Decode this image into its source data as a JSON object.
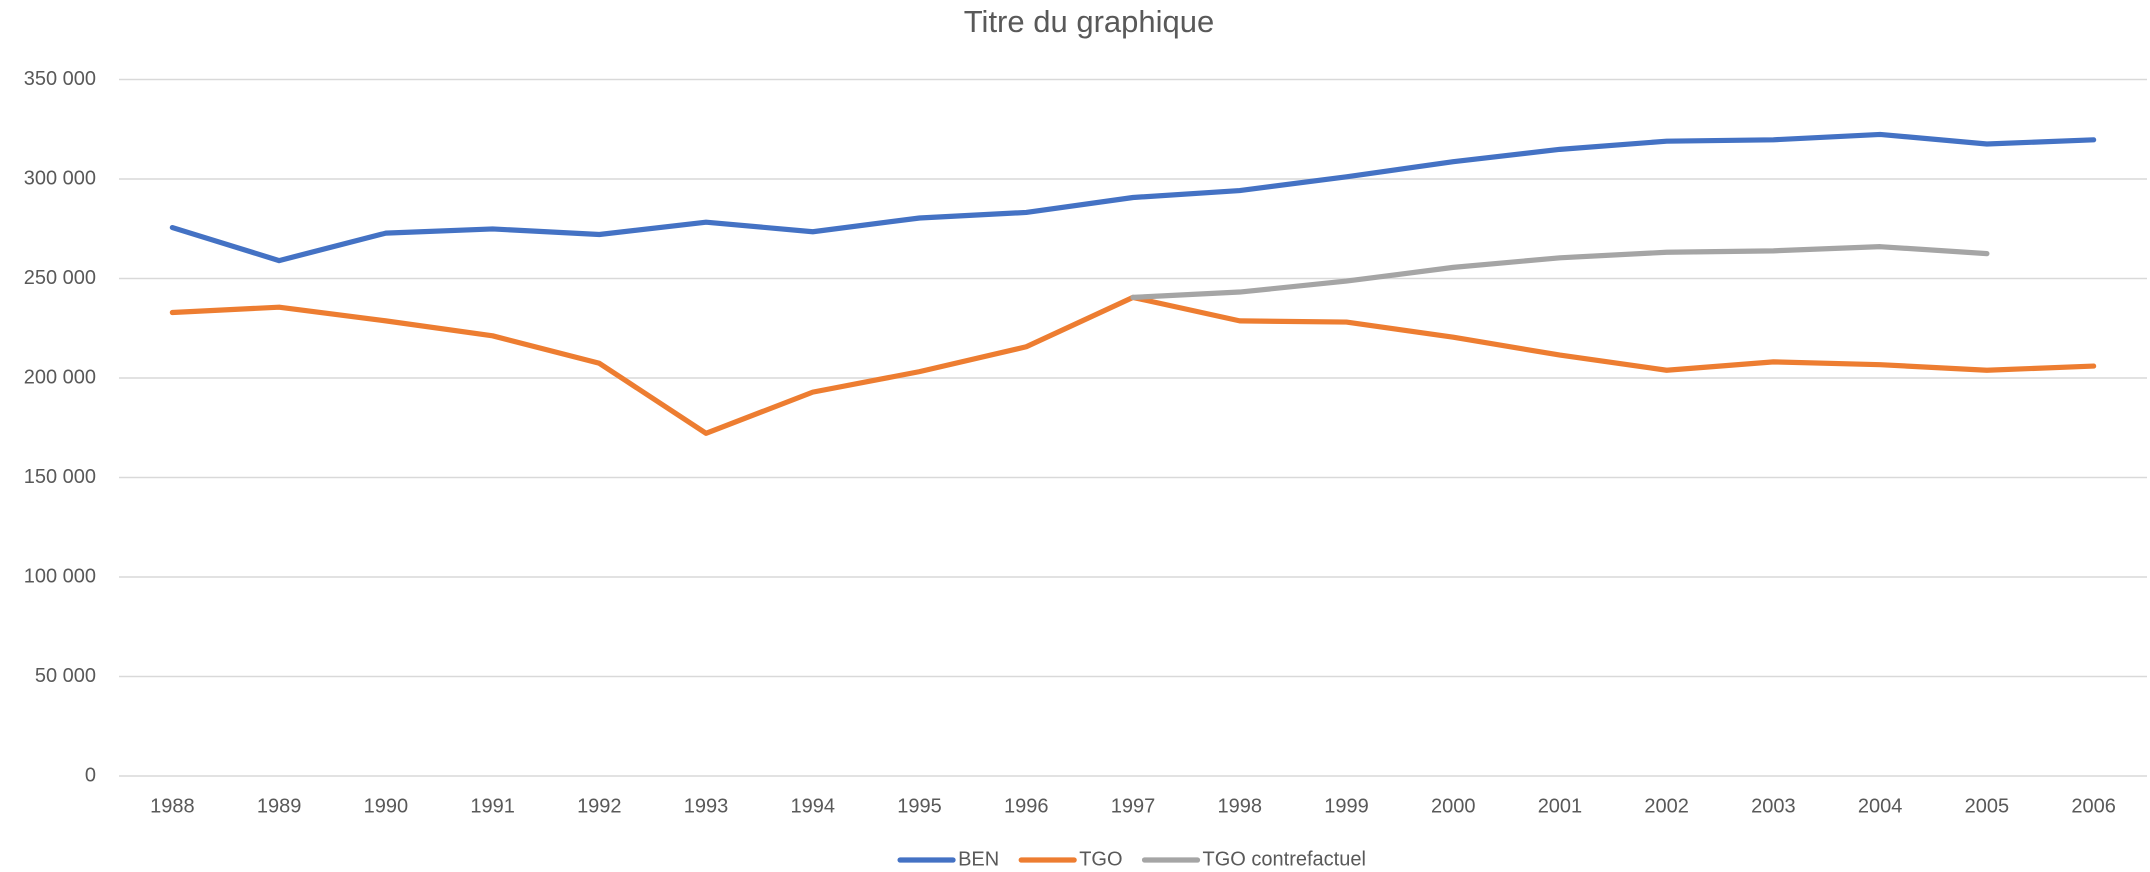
{
  "chart_data": {
    "type": "line",
    "title": "Titre du graphique",
    "categories": [
      "1988",
      "1989",
      "1990",
      "1991",
      "1992",
      "1993",
      "1994",
      "1995",
      "1996",
      "1997",
      "1998",
      "1999",
      "2000",
      "2001",
      "2002",
      "2003",
      "2004",
      "2005",
      "2006"
    ],
    "series": [
      {
        "name": "BEN",
        "color": "#4472c4",
        "values": [
          275600,
          259000,
          272800,
          274900,
          272100,
          278300,
          273500,
          280400,
          283200,
          290700,
          294200,
          301100,
          308700,
          314900,
          319000,
          319700,
          322400,
          317600,
          319700
        ]
      },
      {
        "name": "TGO",
        "color": "#ed7d31",
        "values": [
          232900,
          235600,
          228700,
          221200,
          207400,
          172200,
          192900,
          203200,
          215700,
          240500,
          228700,
          228100,
          220500,
          211500,
          203900,
          208100,
          206700,
          203900,
          206000
        ]
      },
      {
        "name": "TGO contrefactuel",
        "color": "#a5a5a5",
        "values": [
          null,
          null,
          null,
          null,
          null,
          null,
          null,
          null,
          null,
          240500,
          243200,
          248700,
          255600,
          260400,
          263200,
          263900,
          266000,
          262500,
          null
        ]
      }
    ],
    "ylim": [
      0,
      350000
    ],
    "yticks": [
      0,
      {
        "value": 50000,
        "label": "50 000"
      },
      {
        "value": 100000,
        "label": "100 000"
      },
      {
        "value": 150000,
        "label": "150 000"
      },
      {
        "value": 200000,
        "label": "200 000"
      },
      {
        "value": 250000,
        "label": "250 000"
      },
      {
        "value": 300000,
        "label": "300 000"
      },
      {
        "value": 350000,
        "label": "350 000"
      }
    ],
    "grid": true,
    "legend": "bottom"
  }
}
